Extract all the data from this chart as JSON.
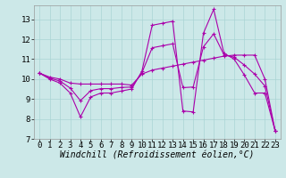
{
  "title": "",
  "xlabel": "Windchill (Refroidissement éolien,°C)",
  "bg_color": "#cce8e8",
  "line_color": "#aa00aa",
  "xlim": [
    -0.5,
    23.5
  ],
  "ylim": [
    7,
    13.7
  ],
  "xticks": [
    0,
    1,
    2,
    3,
    4,
    5,
    6,
    7,
    8,
    9,
    10,
    11,
    12,
    13,
    14,
    15,
    16,
    17,
    18,
    19,
    20,
    21,
    22,
    23
  ],
  "yticks": [
    7,
    8,
    9,
    10,
    11,
    12,
    13
  ],
  "grid_color": "#aad4d4",
  "xlabel_fontsize": 7,
  "tick_fontsize": 6.5,
  "curve1": [
    10.3,
    10.0,
    9.8,
    9.3,
    8.1,
    9.1,
    9.3,
    9.3,
    9.4,
    9.5,
    10.4,
    12.7,
    12.8,
    12.9,
    8.4,
    8.35,
    12.3,
    13.5,
    11.3,
    11.0,
    10.2,
    9.3,
    9.3,
    7.4
  ],
  "curve2": [
    10.3,
    10.1,
    10.0,
    9.8,
    9.75,
    9.75,
    9.75,
    9.75,
    9.75,
    9.7,
    10.25,
    10.45,
    10.55,
    10.65,
    10.75,
    10.85,
    10.95,
    11.05,
    11.15,
    11.2,
    11.2,
    11.2,
    10.0,
    7.4
  ],
  "curve3": [
    10.3,
    10.05,
    9.9,
    9.55,
    8.92,
    9.42,
    9.52,
    9.52,
    9.58,
    9.6,
    10.32,
    11.57,
    11.67,
    11.77,
    9.57,
    9.6,
    11.62,
    12.27,
    11.22,
    11.1,
    10.7,
    10.25,
    9.65,
    7.4
  ]
}
